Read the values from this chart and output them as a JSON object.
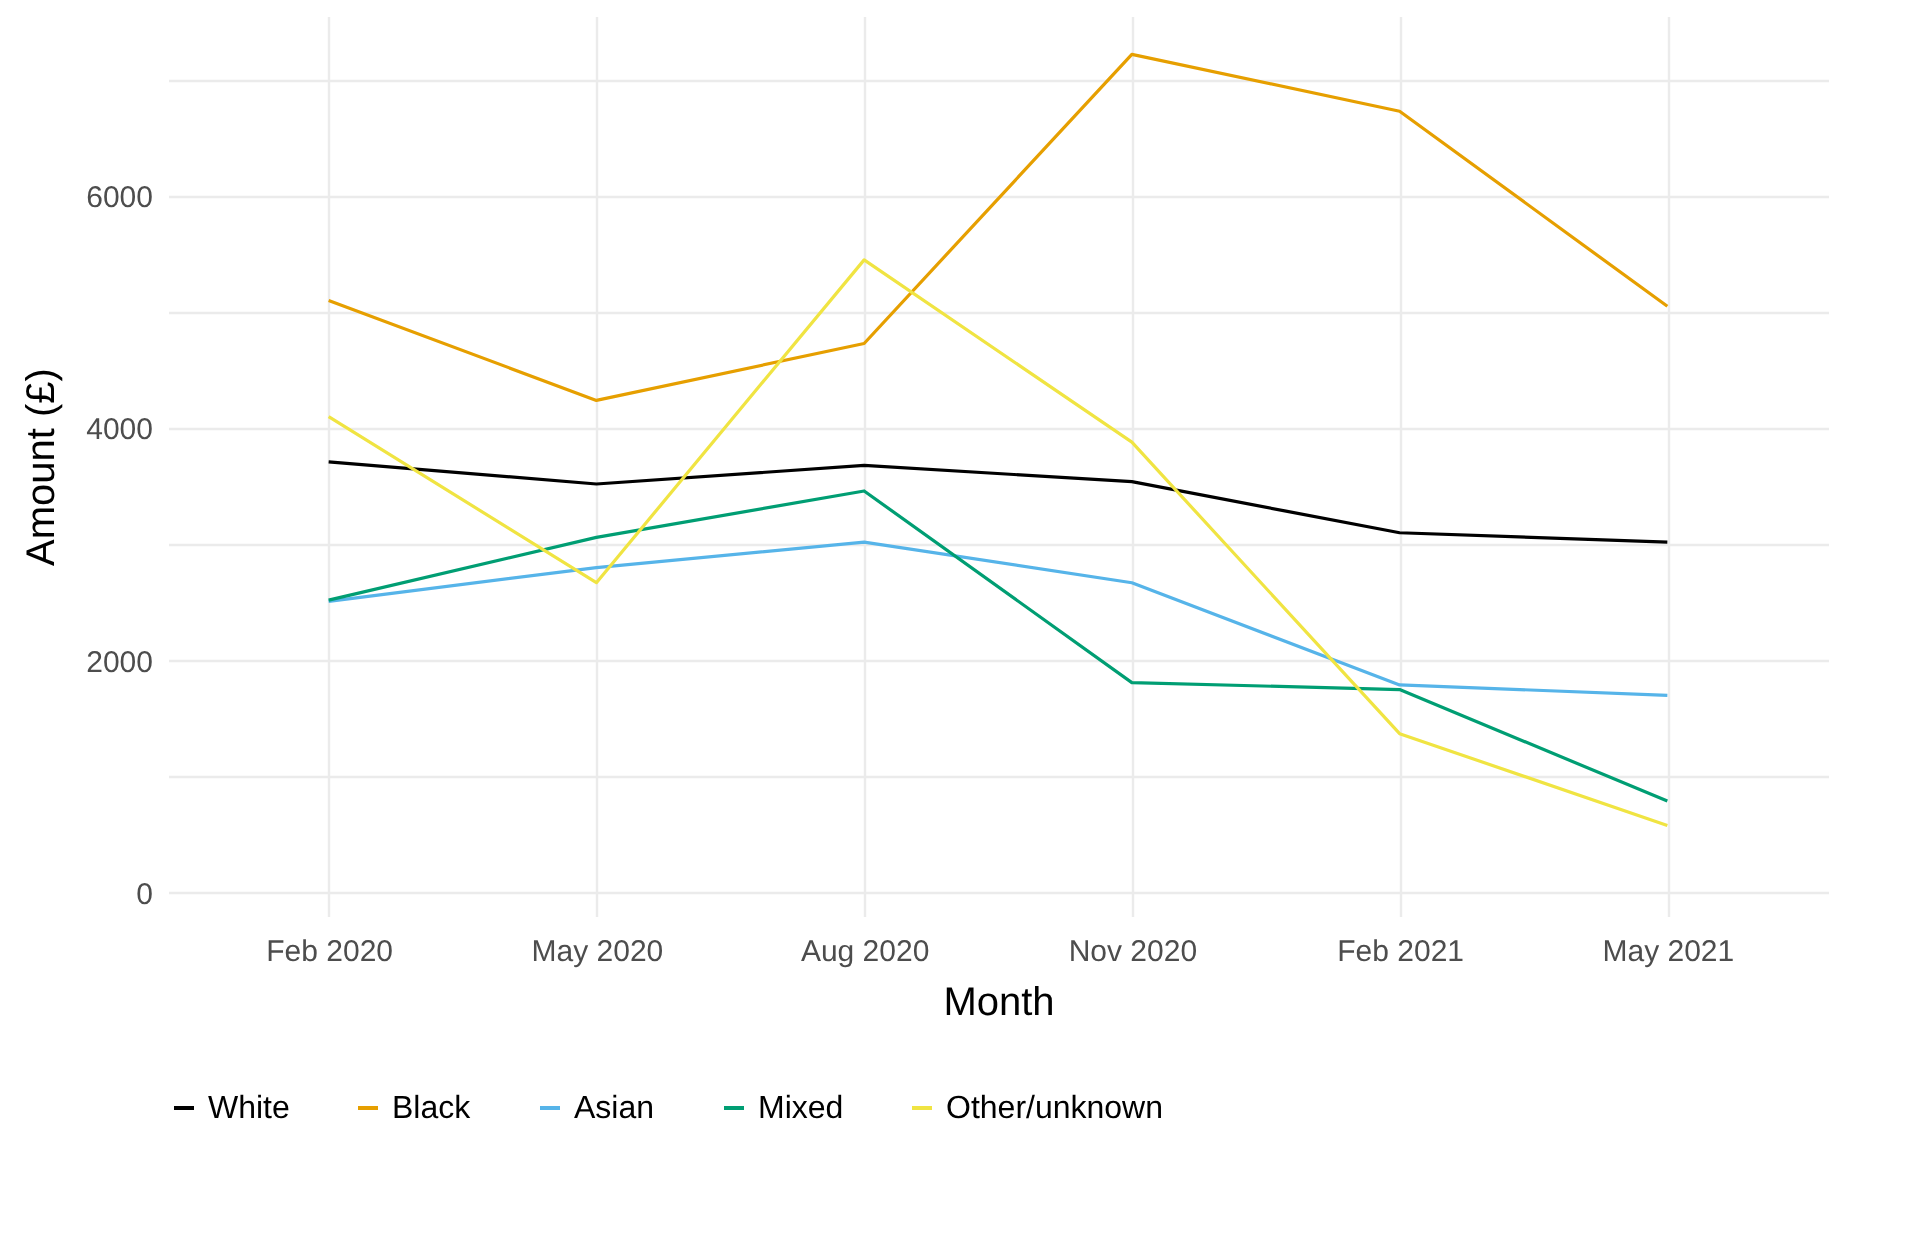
{
  "chart_data": {
    "type": "line",
    "xlabel": "Month",
    "ylabel": "Amount (£)",
    "categories": [
      "Feb 2020",
      "May 2020",
      "Aug 2020",
      "Nov 2020",
      "Feb 2021",
      "May 2021"
    ],
    "series": [
      {
        "name": "White",
        "color": "#000000",
        "values": [
          3710,
          3520,
          3680,
          3540,
          3100,
          3020
        ]
      },
      {
        "name": "Black",
        "color": "#e69f00",
        "values": [
          5100,
          4240,
          4730,
          7220,
          6730,
          5050
        ]
      },
      {
        "name": "Asian",
        "color": "#56b4e9",
        "values": [
          2510,
          2800,
          3020,
          2670,
          1790,
          1700
        ]
      },
      {
        "name": "Mixed",
        "color": "#009e73",
        "values": [
          2520,
          3060,
          3460,
          1810,
          1750,
          790
        ]
      },
      {
        "name": "Other/unknown",
        "color": "#f0e442",
        "values": [
          4100,
          2670,
          5450,
          3880,
          1370,
          580
        ]
      }
    ],
    "ylim": [
      -200,
      7550
    ],
    "yticks": [
      0,
      {
        "value": 1000,
        "label": null
      },
      2000,
      {
        "value": 3000,
        "label": null
      },
      4000,
      {
        "value": 5000,
        "label": null
      },
      6000,
      {
        "value": 7000,
        "label": null
      }
    ],
    "grid": true,
    "legend": "bottom",
    "marker": "none",
    "line_style": "solid"
  }
}
